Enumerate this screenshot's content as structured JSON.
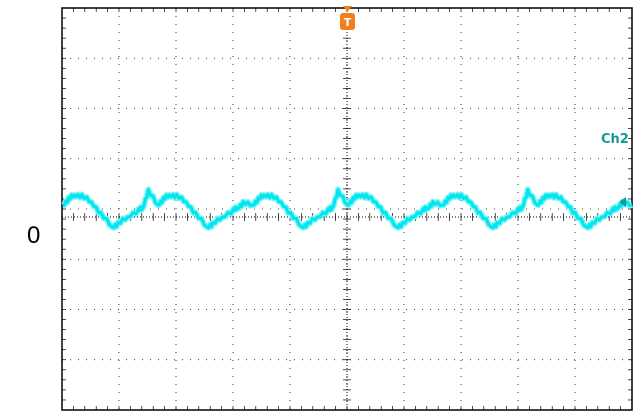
{
  "screen": {
    "zero_marker": "0",
    "channel_label": "Ch2",
    "trigger_marker": "T"
  },
  "colors": {
    "trace": "#00e5ee",
    "trace_glow": "#7ff3f7",
    "channel_label": "#129a9a",
    "trigger": "#f07f1e",
    "grid": "#000000",
    "frame": "#000000"
  },
  "grid": {
    "divisions_x": 10,
    "divisions_y": 8,
    "style": "dotted"
  },
  "trace": {
    "cycles": 6,
    "waveform": "rectified-ripple"
  }
}
